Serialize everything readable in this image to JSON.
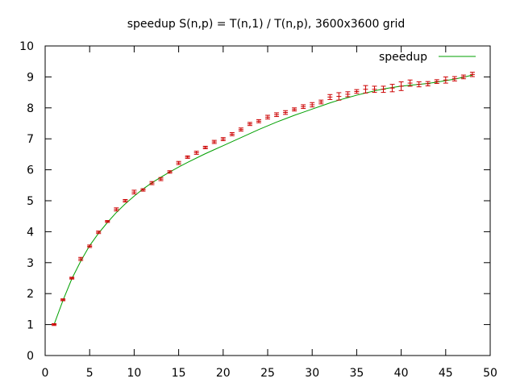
{
  "chart_data": {
    "type": "line",
    "title": "speedup S(n,p) = T(n,1) / T(n,p), 3600x3600 grid",
    "xlabel": "",
    "ylabel": "",
    "xlim": [
      0,
      50
    ],
    "ylim": [
      0,
      10
    ],
    "xticks": [
      "0",
      "5",
      "10",
      "15",
      "20",
      "25",
      "30",
      "35",
      "40",
      "45",
      "50"
    ],
    "yticks": [
      "0",
      "1",
      "2",
      "3",
      "4",
      "5",
      "6",
      "7",
      "8",
      "9",
      "10"
    ],
    "grid": false,
    "legend_position": "top-right",
    "colors": {
      "line": "#00a000",
      "points": "#cc0000",
      "axis": "#000000"
    },
    "series": [
      {
        "name": "speedup",
        "style": "line",
        "x": [
          1,
          2,
          3,
          4,
          5,
          6,
          7,
          8,
          9,
          10,
          11,
          12,
          13,
          14,
          15,
          16,
          17,
          18,
          19,
          20,
          21,
          22,
          23,
          24,
          25,
          26,
          27,
          28,
          29,
          30,
          31,
          32,
          33,
          34,
          35,
          36,
          37,
          38,
          39,
          40,
          41,
          42,
          43,
          44,
          45,
          46,
          47,
          48
        ],
        "y": [
          1.0,
          1.78,
          2.48,
          3.05,
          3.55,
          3.95,
          4.3,
          4.62,
          4.9,
          5.15,
          5.38,
          5.58,
          5.76,
          5.93,
          6.09,
          6.24,
          6.38,
          6.52,
          6.65,
          6.78,
          6.91,
          7.04,
          7.17,
          7.3,
          7.42,
          7.54,
          7.65,
          7.76,
          7.86,
          7.96,
          8.06,
          8.16,
          8.25,
          8.33,
          8.41,
          8.48,
          8.55,
          8.61,
          8.66,
          8.7,
          8.73,
          8.76,
          8.79,
          8.83,
          8.88,
          8.93,
          8.99,
          9.06
        ]
      },
      {
        "name": "",
        "style": "errorbars",
        "x": [
          1,
          2,
          3,
          4,
          5,
          6,
          7,
          8,
          9,
          10,
          11,
          12,
          13,
          14,
          15,
          16,
          17,
          18,
          19,
          20,
          21,
          22,
          23,
          24,
          25,
          26,
          27,
          28,
          29,
          30,
          31,
          32,
          33,
          34,
          35,
          36,
          37,
          38,
          39,
          40,
          41,
          42,
          43,
          44,
          45,
          46,
          47,
          48
        ],
        "y": [
          1.0,
          1.8,
          2.5,
          3.12,
          3.53,
          3.98,
          4.33,
          4.72,
          5.0,
          5.28,
          5.35,
          5.57,
          5.7,
          5.93,
          6.22,
          6.41,
          6.55,
          6.72,
          6.9,
          6.99,
          7.15,
          7.3,
          7.48,
          7.57,
          7.7,
          7.78,
          7.85,
          7.95,
          8.04,
          8.1,
          8.19,
          8.35,
          8.37,
          8.44,
          8.53,
          8.6,
          8.6,
          8.6,
          8.64,
          8.7,
          8.8,
          8.76,
          8.78,
          8.85,
          8.9,
          8.94,
          9.0,
          9.08
        ],
        "err": [
          0.03,
          0.03,
          0.03,
          0.05,
          0.04,
          0.04,
          0.03,
          0.05,
          0.04,
          0.06,
          0.04,
          0.05,
          0.05,
          0.04,
          0.05,
          0.04,
          0.05,
          0.04,
          0.05,
          0.05,
          0.05,
          0.05,
          0.05,
          0.05,
          0.06,
          0.06,
          0.06,
          0.05,
          0.06,
          0.07,
          0.06,
          0.08,
          0.12,
          0.08,
          0.06,
          0.12,
          0.1,
          0.1,
          0.12,
          0.14,
          0.1,
          0.08,
          0.07,
          0.06,
          0.1,
          0.07,
          0.06,
          0.07
        ]
      }
    ]
  }
}
